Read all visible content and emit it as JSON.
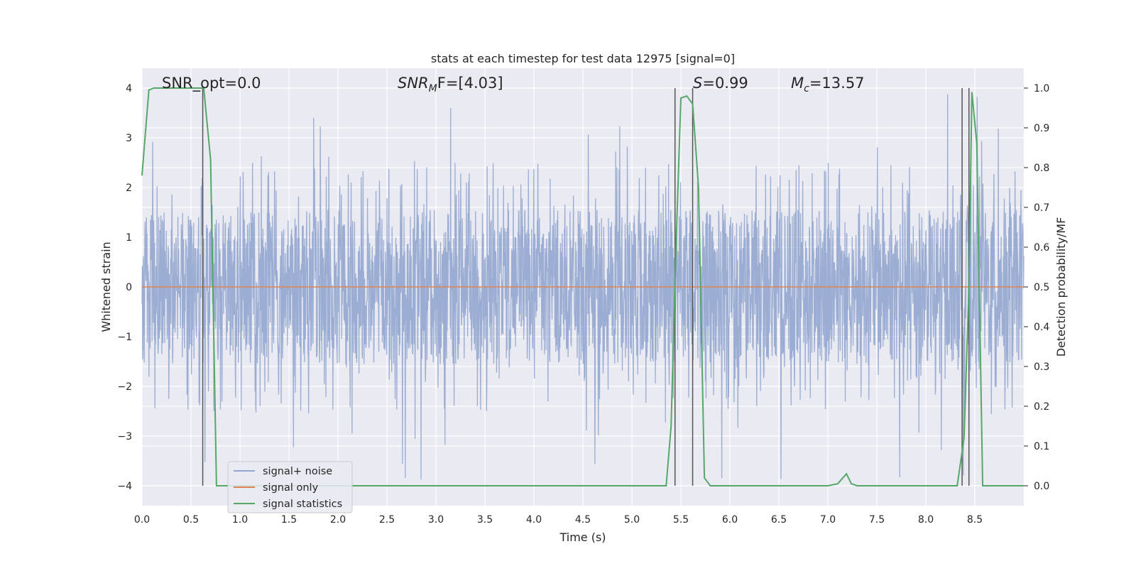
{
  "chart_data": {
    "type": "line",
    "title": "stats at each timestep for test data 12975 [signal=0]",
    "xlabel": "Time (s)",
    "ylabel": "Whitened strain",
    "ylabel_right": "Detection probability/MF",
    "xlim": [
      0.0,
      9.0
    ],
    "ylim": [
      -4.4,
      4.4
    ],
    "ylim_right": [
      -0.05,
      1.05
    ],
    "x_ticks": [
      "0.0",
      "0.5",
      "1.0",
      "1.5",
      "2.0",
      "2.5",
      "3.0",
      "3.5",
      "4.0",
      "4.5",
      "5.0",
      "5.5",
      "6.0",
      "6.5",
      "7.0",
      "7.5",
      "8.0",
      "8.5"
    ],
    "y_ticks": [
      "4",
      "3",
      "2",
      "1",
      "0",
      "−1",
      "−2",
      "−3",
      "−4"
    ],
    "y_ticks_right": [
      "1.0",
      "0.9",
      "0.8",
      "0.7",
      "0.6",
      "0.5",
      "0.4",
      "0.3",
      "0.2",
      "0.1",
      "0.0"
    ],
    "grid": true,
    "legend_position": "lower-left",
    "annotations": {
      "snr_opt": "SNR_opt=0.0",
      "snr_mf_prefix": "SNR",
      "snr_mf_sub": "M",
      "snr_mf_suffix": "F=[4.03]",
      "s_prefix": "S",
      "s_value": "=0.99",
      "mc_prefix": "M",
      "mc_sub": "c",
      "mc_value": "=13.57"
    },
    "series": [
      {
        "name": "signal+ noise",
        "color": "#92a6cf",
        "description_values": "whitened strain noise, roughly within [-1.6, 1.6] with occasional peaks up to about ±3.9"
      },
      {
        "name": "signal only",
        "color": "#dd8452",
        "x": [
          0.0,
          9.0
        ],
        "y": [
          0.0,
          0.0
        ]
      },
      {
        "name": "signal statistics",
        "color": "#55a868",
        "axis": "right",
        "x": [
          0.0,
          0.07,
          0.12,
          0.2,
          0.3,
          0.4,
          0.5,
          0.6,
          0.63,
          0.7,
          0.76,
          0.8,
          1.5,
          2.5,
          3.5,
          4.5,
          5.0,
          5.35,
          5.4,
          5.45,
          5.5,
          5.56,
          5.62,
          5.68,
          5.74,
          5.8,
          6.0,
          6.5,
          7.0,
          7.1,
          7.19,
          7.24,
          7.3,
          8.0,
          8.32,
          8.39,
          8.44,
          8.47,
          8.52,
          8.58,
          8.7,
          9.0
        ],
        "y": [
          0.78,
          0.995,
          1.0,
          1.0,
          1.0,
          1.0,
          1.0,
          1.0,
          1.0,
          0.82,
          0.0,
          0.0,
          0.0,
          0.0,
          0.0,
          0.0,
          0.0,
          0.0,
          0.15,
          0.6,
          0.975,
          0.98,
          0.96,
          0.75,
          0.02,
          0.0,
          0.0,
          0.0,
          0.0,
          0.005,
          0.03,
          0.005,
          0.0,
          0.0,
          0.0,
          0.12,
          0.5,
          0.99,
          0.86,
          0.0,
          0.0,
          0.0
        ]
      }
    ],
    "vertical_markers_x": [
      0.62,
      5.44,
      5.62,
      8.37,
      8.44
    ]
  }
}
